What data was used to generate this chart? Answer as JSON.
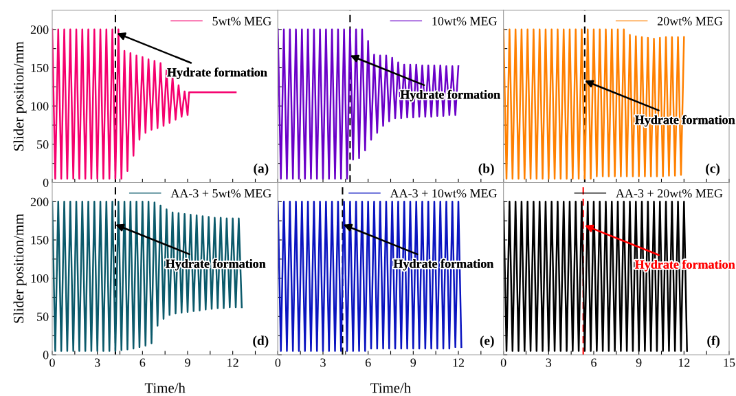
{
  "chart_data": [
    {
      "type": "line",
      "ylabel": "Slider position/mm",
      "tick_labels": "y",
      "legend": "top right",
      "xlim": [
        0,
        15
      ],
      "ylim": [
        0,
        225
      ],
      "xticks": [
        0,
        {
          "value": 1.5,
          "label": null
        },
        3,
        {
          "value": 4.5,
          "label": null
        },
        6,
        {
          "value": 7.5,
          "label": null
        },
        9,
        {
          "value": 10.5,
          "label": null
        },
        12,
        {
          "value": 13.5,
          "label": null
        },
        15
      ],
      "yticks": [
        0,
        {
          "value": 25,
          "label": null
        },
        50,
        {
          "value": 75,
          "label": null
        },
        100,
        {
          "value": 125,
          "label": null
        },
        150,
        {
          "value": 175,
          "label": null
        },
        200
      ],
      "x": [
        0,
        0.2,
        0.4,
        0.6,
        0.8,
        1,
        1.2,
        1.4,
        1.6,
        1.8,
        2,
        2.2,
        2.4,
        2.6,
        2.8,
        3,
        3.2,
        3.4,
        3.6,
        3.8,
        4,
        4.2,
        4.4,
        4.6,
        4.8,
        5,
        5.2,
        5.4,
        5.6,
        5.8,
        6,
        6.2,
        6.4,
        6.6,
        6.8,
        7,
        7.2,
        7.4,
        7.6,
        7.8,
        8,
        8.2,
        8.4,
        8.6,
        8.8,
        9,
        9.1,
        12.2
      ],
      "series": [
        {
          "name": "5wt% MEG",
          "color": "#f5006e",
          "values": [
            200,
            5,
            200,
            5,
            200,
            5,
            200,
            5,
            200,
            5,
            200,
            5,
            200,
            5,
            200,
            5,
            200,
            5,
            200,
            5,
            200,
            5,
            200,
            5,
            172,
            15,
            169,
            35,
            166,
            56,
            164,
            65,
            161,
            69,
            159,
            71,
            156,
            74,
            147,
            78,
            138,
            82,
            127,
            86,
            119,
            88,
            118,
            118
          ]
        }
      ],
      "ref_lines": [
        {
          "axis": "x",
          "value": 4.2,
          "color": "#000000",
          "line_style": "dashed"
        }
      ],
      "annotations": [
        "(a)",
        {
          "text": "Hydrate formation",
          "x": 4.3,
          "y": 195
        }
      ]
    },
    {
      "type": "line",
      "tick_labels": false,
      "legend": "top right",
      "xlim": [
        0,
        15
      ],
      "ylim": [
        0,
        225
      ],
      "xticks": [
        0,
        {
          "value": 1.5,
          "label": null
        },
        3,
        {
          "value": 4.5,
          "label": null
        },
        6,
        {
          "value": 7.5,
          "label": null
        },
        9,
        {
          "value": 10.5,
          "label": null
        },
        12,
        {
          "value": 13.5,
          "label": null
        },
        15
      ],
      "yticks": [
        0,
        {
          "value": 25,
          "label": null
        },
        50,
        {
          "value": 75,
          "label": null
        },
        100,
        {
          "value": 125,
          "label": null
        },
        150,
        {
          "value": 175,
          "label": null
        },
        200
      ],
      "x": [
        0,
        0.2,
        0.4,
        0.6,
        0.8,
        1,
        1.2,
        1.4,
        1.6,
        1.8,
        2,
        2.2,
        2.4,
        2.6,
        2.8,
        3,
        3.2,
        3.4,
        3.6,
        3.8,
        4,
        4.2,
        4.4,
        4.6,
        4.8,
        5,
        5.2,
        5.4,
        5.6,
        5.8,
        6,
        6.2,
        6.4,
        6.6,
        6.8,
        7,
        7.2,
        7.4,
        7.6,
        7.8,
        8,
        8.2,
        8.4,
        8.6,
        8.8,
        9,
        9.2,
        9.4,
        9.6,
        9.8,
        10,
        10.2,
        10.4,
        10.6,
        10.8,
        11,
        11.2,
        11.4,
        11.6,
        11.8,
        12
      ],
      "series": [
        {
          "name": "10wt% MEG",
          "color": "#6a00c8",
          "values": [
            200,
            5,
            200,
            5,
            200,
            5,
            200,
            5,
            200,
            5,
            200,
            5,
            200,
            5,
            200,
            5,
            200,
            5,
            200,
            5,
            200,
            5,
            200,
            5,
            200,
            30,
            200,
            32,
            200,
            42,
            185,
            56,
            167,
            65,
            166,
            74,
            166,
            80,
            163,
            84,
            157,
            84,
            154,
            85,
            154,
            85,
            154,
            86,
            153,
            86,
            153,
            86,
            153,
            87,
            153,
            87,
            152,
            88,
            152,
            88,
            152
          ]
        }
      ],
      "ref_lines": [
        {
          "axis": "x",
          "value": 4.8,
          "color": "#000000",
          "line_style": "dashed"
        }
      ],
      "annotations": [
        "(b)",
        {
          "text": "Hydrate formation",
          "x": 4.8,
          "y": 166
        }
      ]
    },
    {
      "type": "line",
      "tick_labels": false,
      "legend": "top right",
      "xlim": [
        0,
        15
      ],
      "ylim": [
        0,
        225
      ],
      "xticks": [
        0,
        {
          "value": 1.5,
          "label": null
        },
        3,
        {
          "value": 4.5,
          "label": null
        },
        6,
        {
          "value": 7.5,
          "label": null
        },
        9,
        {
          "value": 10.5,
          "label": null
        },
        12,
        {
          "value": 13.5,
          "label": null
        },
        15
      ],
      "yticks": [
        0,
        {
          "value": 25,
          "label": null
        },
        50,
        {
          "value": 75,
          "label": null
        },
        100,
        {
          "value": 125,
          "label": null
        },
        150,
        {
          "value": 175,
          "label": null
        },
        200
      ],
      "x": [
        0,
        0.2,
        0.4,
        0.6,
        0.8,
        1,
        1.2,
        1.4,
        1.6,
        1.8,
        2,
        2.2,
        2.4,
        2.6,
        2.8,
        3,
        3.2,
        3.4,
        3.6,
        3.8,
        4,
        4.2,
        4.4,
        4.6,
        4.8,
        5,
        5.2,
        5.4,
        5.6,
        5.8,
        6,
        6.2,
        6.4,
        6.6,
        6.8,
        7,
        7.2,
        7.4,
        7.6,
        7.8,
        8,
        8.2,
        8.4,
        8.6,
        8.8,
        9,
        9.2,
        9.4,
        9.6,
        9.8,
        10,
        10.2,
        10.4,
        10.6,
        10.8,
        11,
        11.2,
        11.4,
        11.6,
        11.8,
        12
      ],
      "series": [
        {
          "name": "20wt% MEG",
          "color": "#ff8000",
          "values": [
            200,
            5,
            200,
            5,
            200,
            5,
            200,
            5,
            200,
            5,
            200,
            5,
            200,
            5,
            200,
            5,
            200,
            5,
            200,
            5,
            200,
            5,
            200,
            5,
            200,
            5,
            200,
            5,
            200,
            5,
            200,
            8,
            200,
            8,
            200,
            8,
            200,
            8,
            200,
            8,
            200,
            8,
            193,
            8,
            191,
            8,
            190,
            8,
            189,
            8,
            188,
            8,
            189,
            8,
            190,
            9,
            190,
            9,
            190,
            10,
            190
          ]
        }
      ],
      "ref_lines": [
        {
          "axis": "x",
          "value": 5.4,
          "color": "#000000",
          "line_style": "dashed"
        }
      ],
      "annotations": [
        "(c)",
        {
          "text": "Hydrate formation",
          "x": 5.4,
          "y": 133
        }
      ]
    },
    {
      "type": "line",
      "xlabel": "Time/h",
      "ylabel": "Slider position/mm",
      "legend": "top right",
      "xlim": [
        0,
        15
      ],
      "ylim": [
        0,
        225
      ],
      "xticks": [
        0,
        {
          "value": 1.5,
          "label": null
        },
        3,
        {
          "value": 4.5,
          "label": null
        },
        6,
        {
          "value": 7.5,
          "label": null
        },
        9,
        {
          "value": 10.5,
          "label": null
        },
        12,
        {
          "value": 13.5,
          "label": null
        },
        {
          "value": 15,
          "label": null
        }
      ],
      "yticks": [
        0,
        {
          "value": 25,
          "label": null
        },
        50,
        {
          "value": 75,
          "label": null
        },
        100,
        {
          "value": 125,
          "label": null
        },
        150,
        {
          "value": 175,
          "label": null
        },
        200
      ],
      "x": [
        0,
        0.2,
        0.4,
        0.6,
        0.8,
        1,
        1.2,
        1.4,
        1.6,
        1.8,
        2,
        2.2,
        2.4,
        2.6,
        2.8,
        3,
        3.2,
        3.4,
        3.6,
        3.8,
        4,
        4.2,
        4.4,
        4.6,
        4.8,
        5,
        5.2,
        5.4,
        5.6,
        5.8,
        6,
        6.2,
        6.4,
        6.6,
        6.8,
        7,
        7.2,
        7.4,
        7.6,
        7.8,
        8,
        8.2,
        8.4,
        8.6,
        8.8,
        9,
        9.2,
        9.4,
        9.6,
        9.8,
        10,
        10.2,
        10.4,
        10.6,
        10.8,
        11,
        11.2,
        11.4,
        11.6,
        11.8,
        12,
        12.2,
        12.4,
        12.6
      ],
      "series": [
        {
          "name": "AA-3 + 5wt% MEG",
          "color": "#0b5a6b",
          "values": [
            200,
            5,
            200,
            5,
            200,
            5,
            200,
            5,
            200,
            5,
            200,
            5,
            200,
            5,
            200,
            5,
            200,
            5,
            200,
            5,
            200,
            5,
            200,
            6,
            200,
            7,
            200,
            8,
            200,
            10,
            200,
            12,
            200,
            15,
            199,
            38,
            195,
            47,
            190,
            52,
            186,
            54,
            185,
            55,
            184,
            56,
            183,
            57,
            182,
            58,
            181,
            59,
            180,
            60,
            179,
            61,
            179,
            61,
            178,
            62,
            178,
            62,
            178,
            62
          ]
        }
      ],
      "ref_lines": [
        {
          "axis": "x",
          "value": 4.2,
          "color": "#000000",
          "line_style": "dashed"
        }
      ],
      "annotations": [
        "(d)",
        {
          "text": "Hydrate formation",
          "x": 4.2,
          "y": 170
        }
      ]
    },
    {
      "type": "line",
      "xlabel": "Time/h",
      "tick_labels": "x",
      "legend": "top right",
      "xlim": [
        0,
        15
      ],
      "ylim": [
        0,
        225
      ],
      "xticks": [
        0,
        {
          "value": 1.5,
          "label": null
        },
        3,
        {
          "value": 4.5,
          "label": null
        },
        6,
        {
          "value": 7.5,
          "label": null
        },
        9,
        {
          "value": 10.5,
          "label": null
        },
        12,
        {
          "value": 13.5,
          "label": null
        },
        {
          "value": 15,
          "label": null
        }
      ],
      "yticks": [
        0,
        {
          "value": 25,
          "label": null
        },
        50,
        {
          "value": 75,
          "label": null
        },
        100,
        {
          "value": 125,
          "label": null
        },
        150,
        {
          "value": 175,
          "label": null
        },
        200
      ],
      "x": [
        0,
        0.2,
        0.4,
        0.6,
        0.8,
        1,
        1.2,
        1.4,
        1.6,
        1.8,
        2,
        2.2,
        2.4,
        2.6,
        2.8,
        3,
        3.2,
        3.4,
        3.6,
        3.8,
        4,
        4.2,
        4.4,
        4.6,
        4.8,
        5,
        5.2,
        5.4,
        5.6,
        5.8,
        6,
        6.2,
        6.4,
        6.6,
        6.8,
        7,
        7.2,
        7.4,
        7.6,
        7.8,
        8,
        8.2,
        8.4,
        8.6,
        8.8,
        9,
        9.2,
        9.4,
        9.6,
        9.8,
        10,
        10.2,
        10.4,
        10.6,
        10.8,
        11,
        11.2,
        11.4,
        11.6,
        11.8,
        12,
        12.2
      ],
      "series": [
        {
          "name": "AA-3 + 10wt% MEG",
          "color": "#0a14c0",
          "values": [
            200,
            5,
            200,
            5,
            200,
            5,
            200,
            5,
            200,
            5,
            200,
            5,
            200,
            5,
            200,
            5,
            200,
            5,
            200,
            5,
            200,
            5,
            200,
            5,
            200,
            5,
            200,
            5,
            200,
            5,
            200,
            8,
            200,
            8,
            200,
            8,
            200,
            8,
            200,
            8,
            200,
            8,
            200,
            8,
            200,
            8,
            200,
            8,
            200,
            8,
            200,
            8,
            200,
            8,
            200,
            8,
            200,
            8,
            200,
            10,
            200,
            10
          ]
        }
      ],
      "ref_lines": [
        {
          "axis": "x",
          "value": 4.3,
          "color": "#000000",
          "line_style": "dashed"
        }
      ],
      "annotations": [
        "(e)",
        {
          "text": "Hydrate formation",
          "x": 4.35,
          "y": 170
        }
      ]
    },
    {
      "type": "line",
      "tick_labels": "x",
      "legend": "top right",
      "xlim": [
        0,
        15
      ],
      "ylim": [
        0,
        225
      ],
      "xticks": [
        0,
        {
          "value": 1.5,
          "label": null
        },
        3,
        {
          "value": 4.5,
          "label": null
        },
        6,
        {
          "value": 7.5,
          "label": null
        },
        9,
        {
          "value": 10.5,
          "label": null
        },
        12,
        {
          "value": 13.5,
          "label": null
        },
        15
      ],
      "yticks": [
        0,
        {
          "value": 25,
          "label": null
        },
        50,
        {
          "value": 75,
          "label": null
        },
        100,
        {
          "value": 125,
          "label": null
        },
        150,
        {
          "value": 175,
          "label": null
        },
        200
      ],
      "x": [
        0,
        0.2,
        0.4,
        0.6,
        0.8,
        1,
        1.2,
        1.4,
        1.6,
        1.8,
        2,
        2.2,
        2.4,
        2.6,
        2.8,
        3,
        3.2,
        3.4,
        3.6,
        3.8,
        4,
        4.2,
        4.4,
        4.6,
        4.8,
        5,
        5.2,
        5.4,
        5.6,
        5.8,
        6,
        6.2,
        6.4,
        6.6,
        6.8,
        7,
        7.2,
        7.4,
        7.6,
        7.8,
        8,
        8.2,
        8.4,
        8.6,
        8.8,
        9,
        9.2,
        9.4,
        9.6,
        9.8,
        10,
        10.2,
        10.4,
        10.6,
        10.8,
        11,
        11.2,
        11.4,
        11.6,
        11.8,
        12,
        12.2
      ],
      "series": [
        {
          "name": "AA-3 + 20wt% MEG",
          "color": "#000000",
          "values": [
            200,
            5,
            200,
            5,
            200,
            5,
            200,
            5,
            200,
            5,
            200,
            5,
            200,
            5,
            200,
            5,
            200,
            5,
            200,
            5,
            200,
            5,
            200,
            5,
            200,
            5,
            200,
            5,
            200,
            5,
            200,
            5,
            200,
            5,
            200,
            5,
            200,
            5,
            200,
            5,
            200,
            5,
            200,
            5,
            200,
            5,
            200,
            5,
            200,
            5,
            200,
            5,
            200,
            5,
            200,
            5,
            200,
            5,
            200,
            5,
            200,
            5
          ]
        }
      ],
      "ref_lines": [
        {
          "axis": "x",
          "value": 5.3,
          "color": "#ff0000",
          "line_style": "dashed"
        }
      ],
      "annotations": [
        "(f)",
        {
          "text": "Hydrate formation",
          "x": 5.4,
          "y": 169
        }
      ]
    }
  ]
}
